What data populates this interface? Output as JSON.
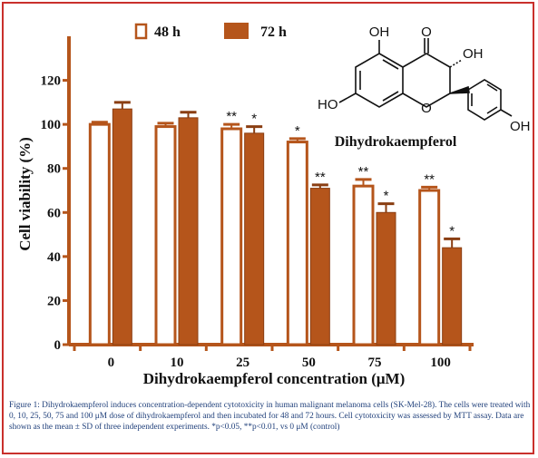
{
  "chart_data": {
    "type": "bar",
    "xlabel": "Dihydrokaempferol concentration (μM)",
    "ylabel": "Cell viability (%)",
    "categories": [
      "0",
      "10",
      "25",
      "50",
      "75",
      "100"
    ],
    "ylim": [
      0,
      140
    ],
    "yticks": [
      "0",
      "20",
      "40",
      "60",
      "80",
      "100",
      "120"
    ],
    "ytick_values": [
      0,
      20,
      40,
      60,
      80,
      100,
      120
    ],
    "legend_position": "top-center",
    "series": [
      {
        "name": "48 h",
        "color": "#ffffff",
        "stroke": "#b5551b",
        "values": [
          100,
          99,
          98,
          92,
          72,
          70
        ],
        "errors": [
          1,
          1.5,
          2,
          1.5,
          3,
          1.5
        ],
        "significance": [
          "",
          "",
          "**",
          "*",
          "**",
          "**"
        ]
      },
      {
        "name": "72 h",
        "color": "#b5551b",
        "stroke": "#8a3e12",
        "values": [
          107,
          103,
          96,
          71,
          60,
          44
        ],
        "errors": [
          3,
          2.5,
          3,
          1.5,
          4,
          4
        ],
        "significance": [
          "",
          "",
          "*",
          "**",
          "*",
          "*"
        ]
      }
    ]
  },
  "structure": {
    "name": "Dihydrokaempferol",
    "labels": [
      "OH",
      "O",
      "OH",
      "HO",
      "O",
      "OH"
    ]
  },
  "caption": "Figure 1: Dihydrokaempferol induces concentration-dependent cytotoxicity in human malignant melanoma cells (SK-Mel-28). The cells were treated with 0, 10, 25, 50, 75 and 100 μM dose of dihydrokaempferol and then incubated for 48 and 72 hours. Cell cytotoxicity was assessed by MTT assay. Data are shown as the mean ± SD of three independent experiments. *p<0.05, **p<0.01, vs 0 μM (control)"
}
